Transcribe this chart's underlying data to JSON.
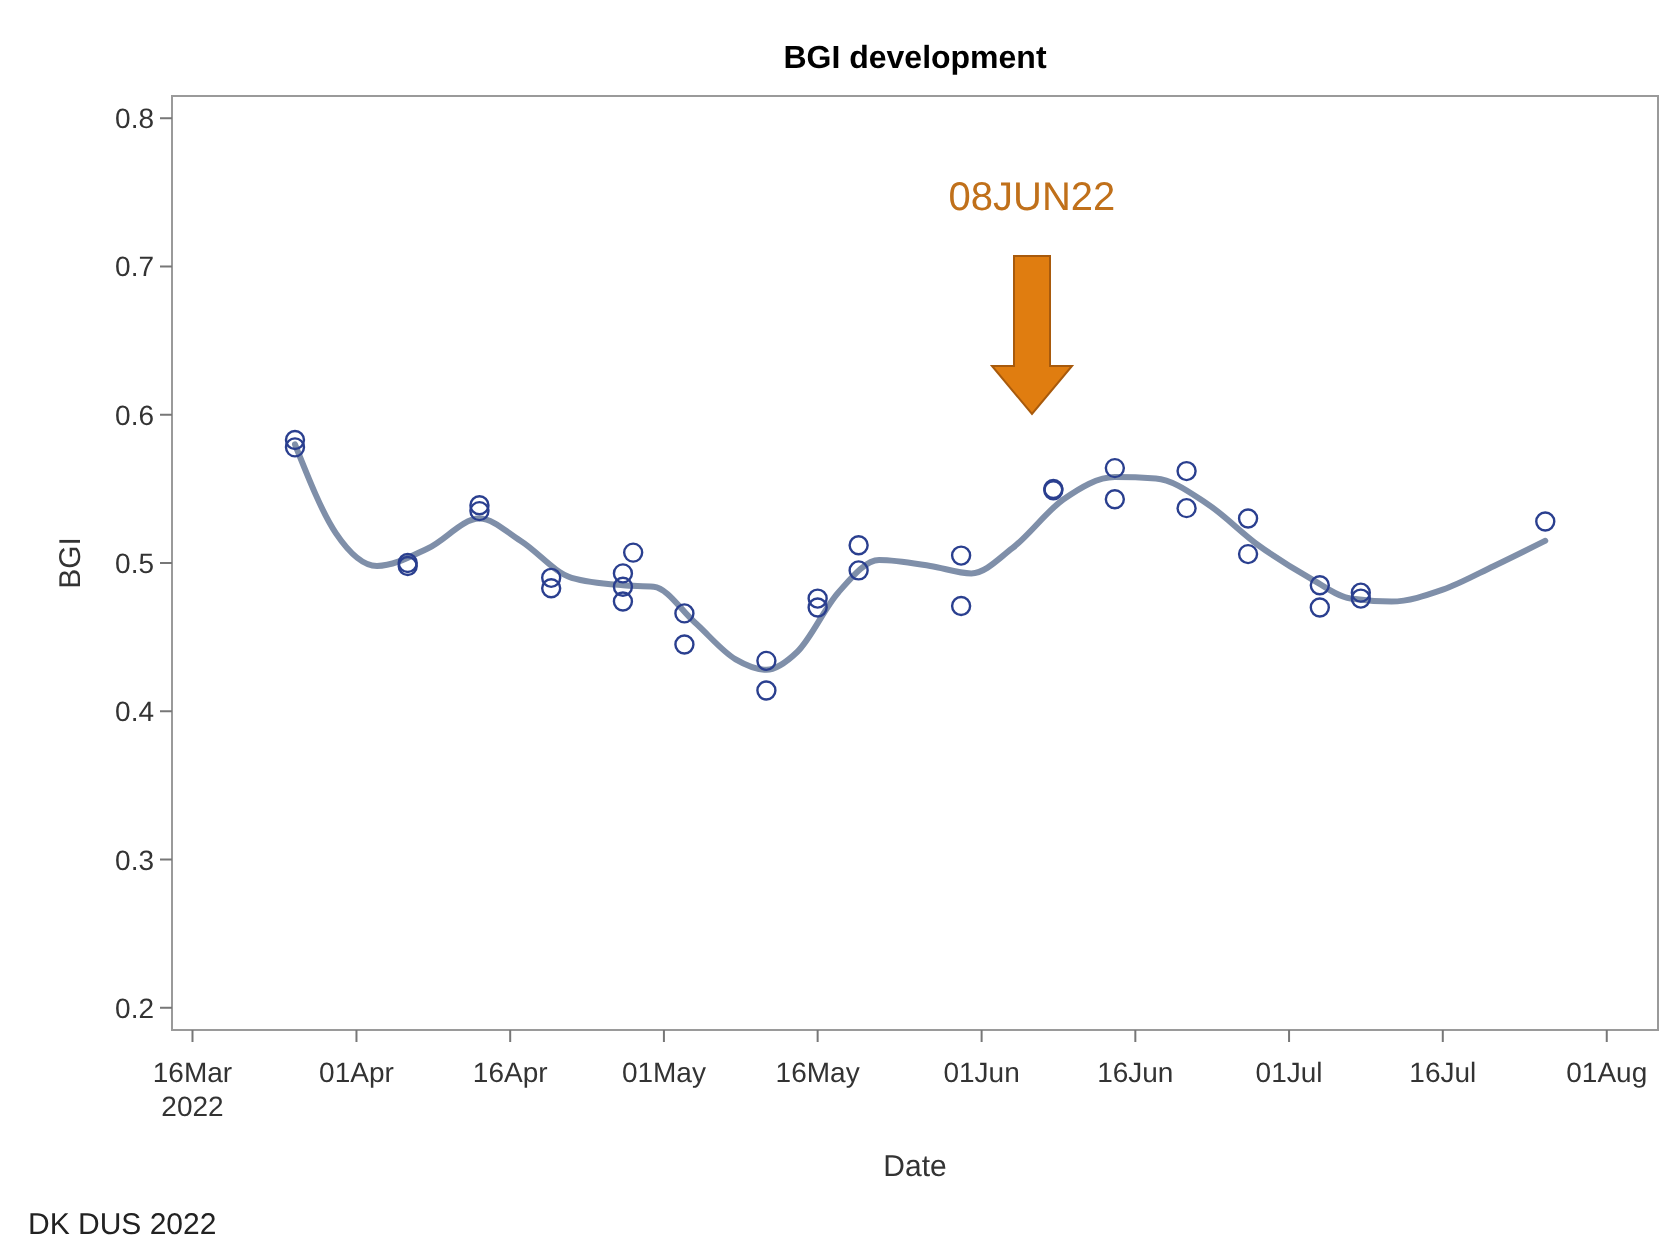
{
  "chart_data": {
    "type": "scatter",
    "title": "BGI development",
    "xlabel": "Date",
    "ylabel": "BGI",
    "xlim": [
      "2022-03-14",
      "2022-08-06"
    ],
    "xticks": [
      {
        "value": "2022-03-16",
        "label": "16Mar\n2022"
      },
      {
        "value": "2022-04-01",
        "label": "01Apr"
      },
      {
        "value": "2022-04-16",
        "label": "16Apr"
      },
      {
        "value": "2022-05-01",
        "label": "01May"
      },
      {
        "value": "2022-05-16",
        "label": "16May"
      },
      {
        "value": "2022-06-01",
        "label": "01Jun"
      },
      {
        "value": "2022-06-16",
        "label": "16Jun"
      },
      {
        "value": "2022-07-01",
        "label": "01Jul"
      },
      {
        "value": "2022-07-16",
        "label": "16Jul"
      },
      {
        "value": "2022-08-01",
        "label": "01Aug"
      }
    ],
    "ylim": [
      0.185,
      0.815
    ],
    "yticks": [
      0.2,
      0.3,
      0.4,
      0.5,
      0.6,
      0.7,
      0.8
    ],
    "series": [
      {
        "marker": "circle",
        "color": "#2a3f8f",
        "x": [
          "2022-03-26",
          "2022-03-26",
          "2022-04-06",
          "2022-04-06",
          "2022-04-13",
          "2022-04-13",
          "2022-04-20",
          "2022-04-20",
          "2022-04-27",
          "2022-04-27",
          "2022-04-27",
          "2022-04-28",
          "2022-05-03",
          "2022-05-03",
          "2022-05-11",
          "2022-05-11",
          "2022-05-16",
          "2022-05-16",
          "2022-05-20",
          "2022-05-20",
          "2022-05-30",
          "2022-05-30",
          "2022-06-08",
          "2022-06-08",
          "2022-06-14",
          "2022-06-14",
          "2022-06-21",
          "2022-06-21",
          "2022-06-27",
          "2022-06-27",
          "2022-07-04",
          "2022-07-04",
          "2022-07-08",
          "2022-07-08",
          "2022-07-26"
        ],
        "values": [
          0.583,
          0.578,
          0.5,
          0.498,
          0.539,
          0.535,
          0.49,
          0.483,
          0.493,
          0.474,
          0.484,
          0.507,
          0.466,
          0.445,
          0.434,
          0.414,
          0.476,
          0.47,
          0.512,
          0.495,
          0.505,
          0.471,
          0.55,
          0.549,
          0.564,
          0.543,
          0.562,
          0.537,
          0.53,
          0.506,
          0.485,
          0.47,
          0.48,
          0.476,
          0.528
        ]
      },
      {
        "type": "line",
        "marker": "none",
        "color": "#7f8fa9",
        "x": [
          "2022-03-26",
          "2022-03-30",
          "2022-04-03",
          "2022-04-08",
          "2022-04-13",
          "2022-04-17",
          "2022-04-22",
          "2022-04-27",
          "2022-04-30",
          "2022-05-04",
          "2022-05-08",
          "2022-05-11",
          "2022-05-14",
          "2022-05-18",
          "2022-05-22",
          "2022-05-27",
          "2022-05-31",
          "2022-06-04",
          "2022-06-09",
          "2022-06-14",
          "2022-06-18",
          "2022-06-23",
          "2022-06-28",
          "2022-07-03",
          "2022-07-07",
          "2022-07-11",
          "2022-07-16",
          "2022-07-21",
          "2022-07-26"
        ],
        "values": [
          0.58,
          0.52,
          0.498,
          0.51,
          0.53,
          0.515,
          0.49,
          0.485,
          0.484,
          0.46,
          0.435,
          0.428,
          0.44,
          0.48,
          0.502,
          0.498,
          0.493,
          0.51,
          0.543,
          0.558,
          0.557,
          0.54,
          0.512,
          0.49,
          0.476,
          0.474,
          0.482,
          0.498,
          0.515
        ]
      }
    ],
    "annotations": [
      "08JUN22",
      "DK DUS 2022"
    ]
  }
}
